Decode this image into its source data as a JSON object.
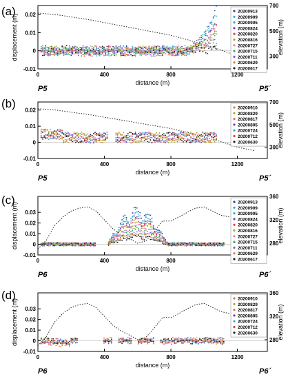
{
  "chart_data": [
    {
      "type": "scatter",
      "panel_label": "(a)",
      "xlabel": "distance (m)",
      "ylabel": "displacement (m)",
      "y2label": "elevation (m)",
      "start_label": "P5",
      "end_label": "P5´",
      "xlim": [
        0,
        1380
      ],
      "ylim": [
        -0.01,
        0.025
      ],
      "y2lim": [
        200,
        700
      ],
      "xticks": [
        "0",
        "400",
        "800",
        "1200"
      ],
      "yticks": [
        "-0.01",
        "0",
        "0.01",
        "0.02"
      ],
      "y2ticks": [
        "300",
        "500",
        "700"
      ],
      "legend_position": "right",
      "legend": [
        "20200913",
        "20200909",
        "20200905",
        "20200824",
        "20200820",
        "20200816",
        "20200727",
        "20200715",
        "20200711",
        "20200629",
        "20200617"
      ],
      "series_colors": [
        "#1f49a8",
        "#3fa0e0",
        "#2ab7b0",
        "#7b3fb5",
        "#e04040",
        "#9ab030",
        "#f07ac0",
        "#30b060",
        "#8060d0",
        "#d08030",
        "#202020"
      ],
      "pattern": "stable-end-uplift",
      "elevation_profile": {
        "x": [
          0,
          100,
          200,
          300,
          400,
          500,
          600,
          700,
          800,
          900,
          1000,
          1100,
          1200,
          1300
        ],
        "y": [
          640,
          630,
          610,
          590,
          565,
          540,
          515,
          490,
          465,
          430,
          390,
          350,
          300,
          270
        ]
      },
      "displacement_range_note": "",
      "uplift_peak": {
        "x": 1070,
        "y": 0.025
      }
    },
    {
      "type": "scatter",
      "panel_label": "(b)",
      "xlabel": "distance (m)",
      "ylabel": "",
      "y2label": "elevation (m)",
      "start_label": "P5",
      "end_label": "P5´",
      "xlim": [
        0,
        1380
      ],
      "ylim": [
        -0.01,
        0.025
      ],
      "y2lim": [
        200,
        700
      ],
      "xticks": [
        "0",
        "400",
        "800",
        "1200"
      ],
      "yticks": [
        "-0.01",
        "0",
        "0.01",
        "0.02"
      ],
      "y2ticks": [
        "300",
        "500",
        "700"
      ],
      "legend_position": "right",
      "legend": [
        "20200910",
        "20200829",
        "20200817",
        "20200805",
        "20200724",
        "20200712",
        "20200630"
      ],
      "series_colors": [
        "#d08030",
        "#9ab030",
        "#e07050",
        "#7b3fb5",
        "#3fa0e0",
        "#e04040",
        "#202020"
      ],
      "pattern": "wavy-positive",
      "elevation_profile": {
        "x": [
          0,
          100,
          200,
          300,
          400,
          500,
          600,
          700,
          800,
          900,
          1000,
          1100,
          1200,
          1300
        ],
        "y": [
          640,
          630,
          610,
          590,
          565,
          540,
          515,
          490,
          465,
          430,
          390,
          350,
          300,
          270
        ]
      }
    },
    {
      "type": "scatter",
      "panel_label": "(c)",
      "xlabel": "distance (m)",
      "ylabel": "displacement (m)",
      "y2label": "elevation (m)",
      "start_label": "P6",
      "end_label": "P6´",
      "xlim": [
        0,
        1380
      ],
      "ylim": [
        -0.01,
        0.045
      ],
      "y2lim": [
        260,
        360
      ],
      "xticks": [
        "0",
        "400",
        "800",
        "1200"
      ],
      "yticks": [
        "-0.01",
        "0",
        "0.01",
        "0.02",
        "0.03"
      ],
      "y2ticks": [
        "280",
        "320",
        "360"
      ],
      "legend_position": "right",
      "legend": [
        "20200913",
        "20200909",
        "20200905",
        "20200824",
        "20200820",
        "20200816",
        "20200727",
        "20200715",
        "20200711",
        "20200629",
        "20200617"
      ],
      "series_colors": [
        "#1f49a8",
        "#3fa0e0",
        "#2ab7b0",
        "#7b3fb5",
        "#e04040",
        "#9ab030",
        "#f07ac0",
        "#30b060",
        "#8060d0",
        "#d08030",
        "#202020"
      ],
      "pattern": "central-uplift",
      "elevation_profile": {
        "x": [
          0,
          50,
          100,
          150,
          200,
          250,
          300,
          350,
          400,
          450,
          500,
          550,
          600,
          650,
          700,
          750,
          800,
          850,
          900,
          950,
          1000,
          1050,
          1100,
          1150
        ],
        "y": [
          270,
          285,
          310,
          325,
          335,
          340,
          342,
          335,
          320,
          305,
          295,
          288,
          280,
          284,
          300,
          318,
          318,
          325,
          333,
          340,
          342,
          335,
          328,
          325
        ]
      }
    },
    {
      "type": "scatter",
      "panel_label": "(d)",
      "xlabel": "distance (m)",
      "ylabel": "displacement (m)",
      "y2label": "elevation (m)",
      "start_label": "P6",
      "end_label": "P6´",
      "xlim": [
        0,
        1380
      ],
      "ylim": [
        -0.01,
        0.045
      ],
      "y2lim": [
        260,
        360
      ],
      "xticks": [
        "0",
        "400",
        "800",
        "1200"
      ],
      "yticks": [
        "-0.01",
        "0",
        "0.01",
        "0.02",
        "0.03"
      ],
      "y2ticks": [
        "280",
        "320",
        "360"
      ],
      "legend_position": "right",
      "legend": [
        "20200910",
        "20200829",
        "20200817",
        "20200805",
        "20200724",
        "20200712",
        "20200630"
      ],
      "series_colors": [
        "#d08030",
        "#9ab030",
        "#e07050",
        "#7b3fb5",
        "#3fa0e0",
        "#e04040",
        "#202020"
      ],
      "pattern": "fragmented-near-zero",
      "elevation_profile": {
        "x": [
          0,
          50,
          100,
          150,
          200,
          250,
          300,
          350,
          400,
          450,
          500,
          550,
          600,
          650,
          700,
          750,
          800,
          850,
          900,
          950,
          1000,
          1050,
          1100,
          1150
        ],
        "y": [
          270,
          285,
          310,
          325,
          335,
          340,
          342,
          335,
          320,
          305,
          295,
          288,
          280,
          284,
          300,
          318,
          318,
          325,
          333,
          340,
          342,
          335,
          328,
          325
        ]
      }
    }
  ]
}
